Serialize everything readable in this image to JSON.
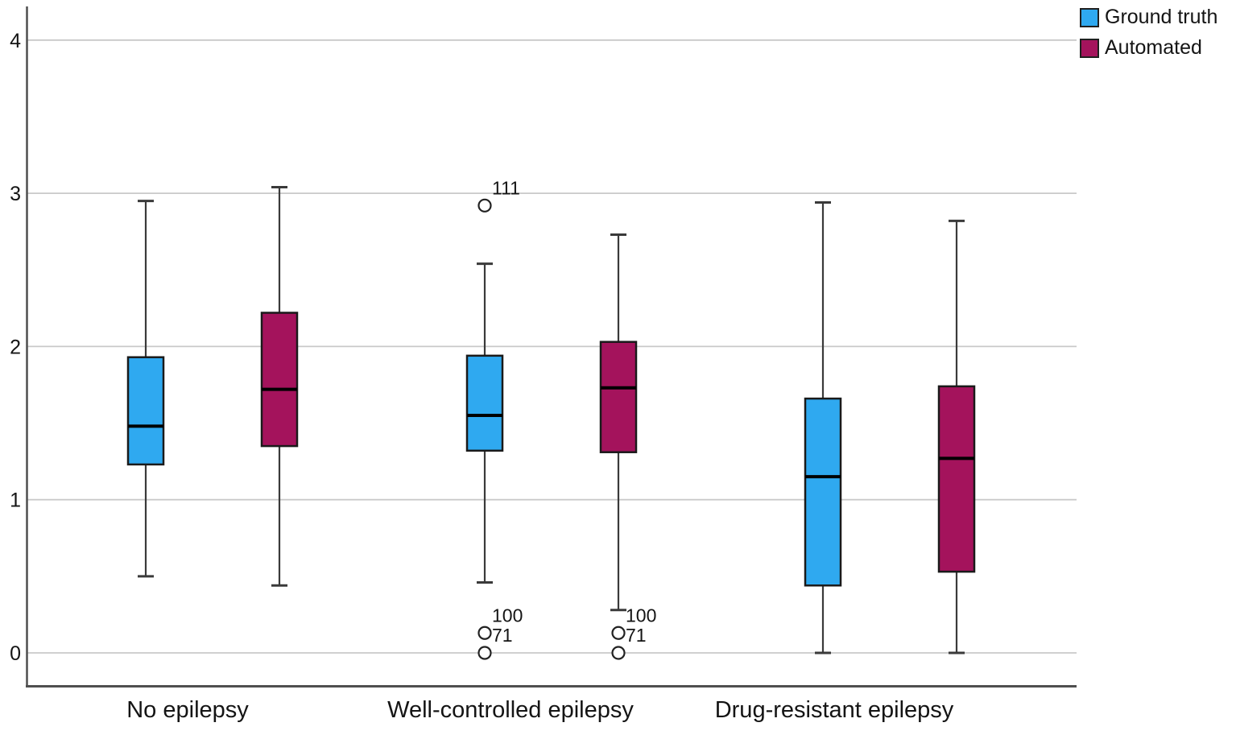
{
  "chart_data": {
    "type": "boxplot",
    "orientation": "vertical",
    "title": "",
    "xlabel": "",
    "ylabel": "",
    "categories": [
      "No epilepsy",
      "Well-controlled epilepsy",
      "Drug-resistant epilepsy"
    ],
    "yticks": [
      0,
      1,
      2,
      3,
      4
    ],
    "ylim": [
      -0.2,
      4.2
    ],
    "grid": "horizontal",
    "legend_position": "top-right",
    "series": [
      {
        "name": "Ground truth",
        "color": "#2FA9F0",
        "boxes": [
          {
            "category": "No epilepsy",
            "min": 0.5,
            "q1": 1.23,
            "median": 1.48,
            "q3": 1.93,
            "max": 2.95,
            "outliers": []
          },
          {
            "category": "Well-controlled epilepsy",
            "min": 0.46,
            "q1": 1.32,
            "median": 1.55,
            "q3": 1.94,
            "max": 2.54,
            "outliers": [
              {
                "value": 2.92,
                "label": "111"
              },
              {
                "value": 0.13,
                "label": "100"
              },
              {
                "value": 0.0,
                "label": "71"
              }
            ]
          },
          {
            "category": "Drug-resistant epilepsy",
            "min": 0.0,
            "q1": 0.44,
            "median": 1.15,
            "q3": 1.66,
            "max": 2.94,
            "outliers": []
          }
        ]
      },
      {
        "name": "Automated",
        "color": "#A4135C",
        "boxes": [
          {
            "category": "No epilepsy",
            "min": 0.44,
            "q1": 1.35,
            "median": 1.72,
            "q3": 2.22,
            "max": 3.04,
            "outliers": []
          },
          {
            "category": "Well-controlled epilepsy",
            "min": 0.28,
            "q1": 1.31,
            "median": 1.73,
            "q3": 2.03,
            "max": 2.73,
            "outliers": [
              {
                "value": 0.13,
                "label": "100"
              },
              {
                "value": 0.0,
                "label": "71"
              }
            ]
          },
          {
            "category": "Drug-resistant epilepsy",
            "min": 0.0,
            "q1": 0.53,
            "median": 1.27,
            "q3": 1.74,
            "max": 2.82,
            "outliers": []
          }
        ]
      }
    ],
    "colors": {
      "gridline": "#c9c9c9",
      "axis": "#4f4f4f",
      "box_border": "#1a1a1a",
      "median": "#000000",
      "whisker": "#3a3a3a",
      "text": "#141414"
    }
  }
}
